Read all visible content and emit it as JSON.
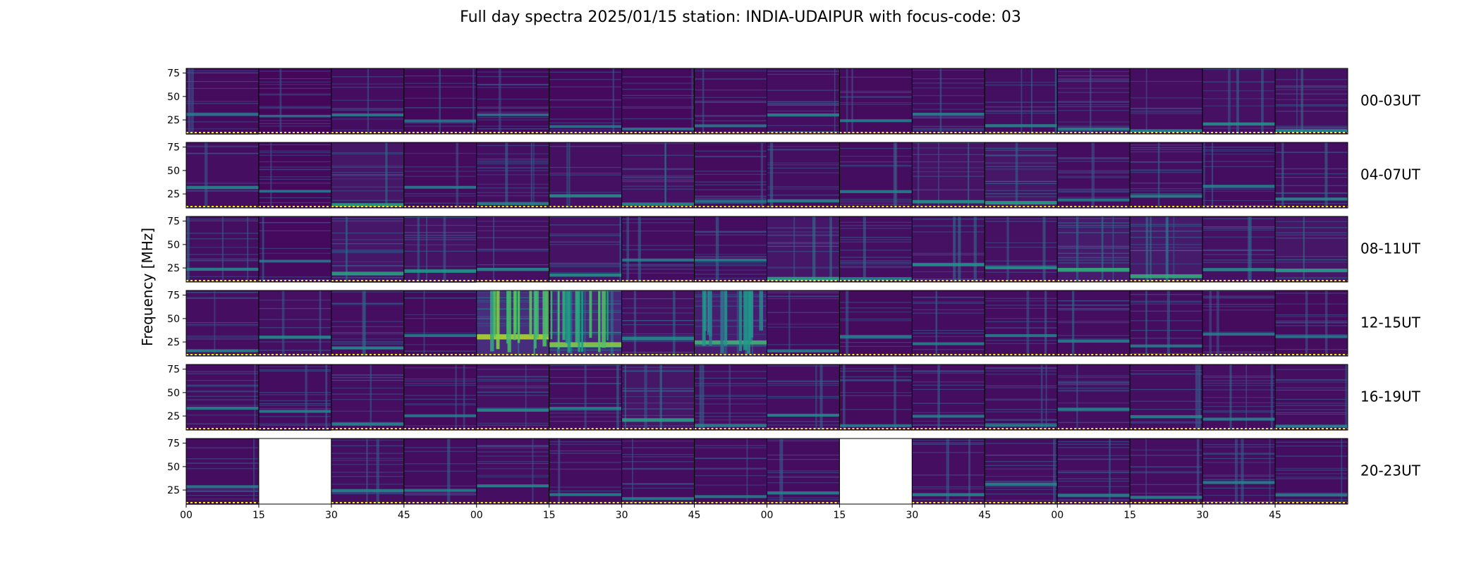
{
  "chart_data": {
    "type": "heatmap",
    "title": "Full day spectra 2025/01/15 station: INDIA-UDAIPUR with focus-code: 03",
    "ylabel": "Frequency [MHz]",
    "xlabel": "",
    "y_ticks": [
      25,
      50,
      75
    ],
    "y_range": [
      10,
      80
    ],
    "x_tick_labels": [
      "00",
      "15",
      "30",
      "45",
      "00",
      "15",
      "30",
      "45",
      "00",
      "15",
      "30",
      "45",
      "00",
      "15",
      "30",
      "45"
    ],
    "colormap": "viridis",
    "colors": {
      "low": "#440154",
      "mid": "#21918c",
      "high": "#fde725",
      "marker": "#fde725"
    },
    "rows": [
      {
        "label": "00-03UT",
        "panels": [
          {
            "intensity": 0.2
          },
          {
            "intensity": 0.12
          },
          {
            "intensity": 0.22
          },
          {
            "intensity": 0.15
          },
          {
            "intensity": 0.16
          },
          {
            "intensity": 0.18
          },
          {
            "intensity": 0.18
          },
          {
            "intensity": 0.2
          },
          {
            "intensity": 0.25
          },
          {
            "intensity": 0.2
          },
          {
            "intensity": 0.22
          },
          {
            "intensity": 0.26
          },
          {
            "intensity": 0.25
          },
          {
            "intensity": 0.24
          },
          {
            "intensity": 0.3
          },
          {
            "intensity": 0.28
          }
        ]
      },
      {
        "label": "04-07UT",
        "panels": [
          {
            "intensity": 0.25
          },
          {
            "intensity": 0.16
          },
          {
            "intensity": 0.4
          },
          {
            "intensity": 0.2
          },
          {
            "intensity": 0.26
          },
          {
            "intensity": 0.28
          },
          {
            "intensity": 0.3
          },
          {
            "intensity": 0.2
          },
          {
            "intensity": 0.26
          },
          {
            "intensity": 0.22
          },
          {
            "intensity": 0.34
          },
          {
            "intensity": 0.4
          },
          {
            "intensity": 0.22
          },
          {
            "intensity": 0.24
          },
          {
            "intensity": 0.22
          },
          {
            "intensity": 0.26
          }
        ]
      },
      {
        "label": "08-11UT",
        "panels": [
          {
            "intensity": 0.26
          },
          {
            "intensity": 0.18
          },
          {
            "intensity": 0.42
          },
          {
            "intensity": 0.36
          },
          {
            "intensity": 0.28
          },
          {
            "intensity": 0.32
          },
          {
            "intensity": 0.22
          },
          {
            "intensity": 0.22
          },
          {
            "intensity": 0.42
          },
          {
            "intensity": 0.26
          },
          {
            "intensity": 0.3
          },
          {
            "intensity": 0.3
          },
          {
            "intensity": 0.5
          },
          {
            "intensity": 0.5
          },
          {
            "intensity": 0.3
          },
          {
            "intensity": 0.4
          }
        ]
      },
      {
        "label": "12-15UT",
        "panels": [
          {
            "intensity": 0.24
          },
          {
            "intensity": 0.28
          },
          {
            "intensity": 0.24
          },
          {
            "intensity": 0.2
          },
          {
            "intensity": 0.85
          },
          {
            "intensity": 0.75
          },
          {
            "intensity": 0.3
          },
          {
            "intensity": 0.55
          },
          {
            "intensity": 0.22
          },
          {
            "intensity": 0.2
          },
          {
            "intensity": 0.22
          },
          {
            "intensity": 0.22
          },
          {
            "intensity": 0.22
          },
          {
            "intensity": 0.22
          },
          {
            "intensity": 0.2
          },
          {
            "intensity": 0.2
          }
        ]
      },
      {
        "label": "16-19UT",
        "panels": [
          {
            "intensity": 0.24
          },
          {
            "intensity": 0.22
          },
          {
            "intensity": 0.24
          },
          {
            "intensity": 0.2
          },
          {
            "intensity": 0.3
          },
          {
            "intensity": 0.24
          },
          {
            "intensity": 0.4
          },
          {
            "intensity": 0.24
          },
          {
            "intensity": 0.24
          },
          {
            "intensity": 0.2
          },
          {
            "intensity": 0.22
          },
          {
            "intensity": 0.22
          },
          {
            "intensity": 0.26
          },
          {
            "intensity": 0.26
          },
          {
            "intensity": 0.24
          },
          {
            "intensity": 0.24
          }
        ]
      },
      {
        "label": "20-23UT",
        "panels": [
          {
            "intensity": 0.22
          },
          {
            "missing": true
          },
          {
            "intensity": 0.26
          },
          {
            "intensity": 0.22
          },
          {
            "intensity": 0.24
          },
          {
            "intensity": 0.22
          },
          {
            "intensity": 0.22
          },
          {
            "intensity": 0.22
          },
          {
            "intensity": 0.22
          },
          {
            "missing": true
          },
          {
            "intensity": 0.24
          },
          {
            "intensity": 0.24
          },
          {
            "intensity": 0.24
          },
          {
            "intensity": 0.24
          },
          {
            "intensity": 0.24
          },
          {
            "intensity": 0.22
          }
        ]
      }
    ]
  }
}
